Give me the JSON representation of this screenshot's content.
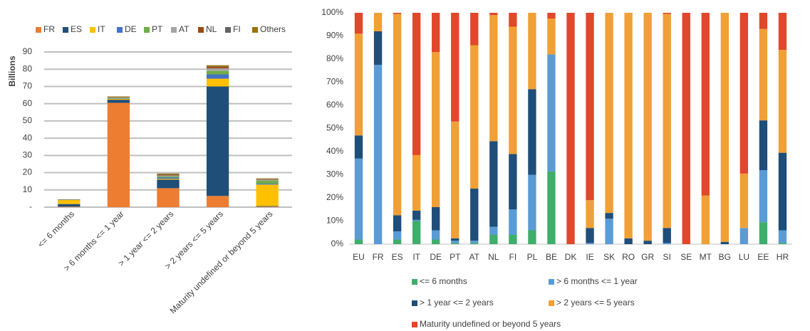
{
  "chart_data": [
    {
      "type": "bar",
      "stacked": true,
      "y_label": "Billions",
      "grid": true,
      "legend": "top",
      "categories": [
        "<= 6 months",
        "> 6 months <= 1 year",
        "> 1 year <= 2 years",
        "> 2 years <= 5 years",
        "Maturity undefined or beyond 5 years"
      ],
      "ylim": [
        0,
        90
      ],
      "yticks": [
        {
          "value": 0,
          "label": "-"
        },
        10,
        20,
        30,
        40,
        50,
        60,
        70,
        80,
        90
      ],
      "series": [
        {
          "name": "FR",
          "color": "#ed7d31",
          "values": [
            0.3,
            60.5,
            11,
            6.5,
            0.3
          ]
        },
        {
          "name": "ES",
          "color": "#1f4e79",
          "values": [
            1.5,
            1.8,
            5,
            63.5,
            0.3
          ]
        },
        {
          "name": "IT",
          "color": "#ffc000",
          "values": [
            2.3,
            0.5,
            0.5,
            4.5,
            12.5
          ]
        },
        {
          "name": "DE",
          "color": "#4472c4",
          "values": [
            0.2,
            0.3,
            0.8,
            2.5,
            0.5
          ]
        },
        {
          "name": "PT",
          "color": "#70ad47",
          "values": [
            0,
            0.3,
            0.6,
            2,
            1.8
          ]
        },
        {
          "name": "AT",
          "color": "#a5a5a5",
          "values": [
            0,
            0.2,
            0.4,
            1.5,
            0.5
          ]
        },
        {
          "name": "NL",
          "color": "#9e480e",
          "values": [
            0,
            0.2,
            0.4,
            0.8,
            0.3
          ]
        },
        {
          "name": "FI",
          "color": "#636363",
          "values": [
            0,
            0.1,
            0.3,
            0.3,
            0.2
          ]
        },
        {
          "name": "Others",
          "color": "#997300",
          "values": [
            0.2,
            0.3,
            0.5,
            0.7,
            0.3
          ]
        }
      ]
    },
    {
      "type": "bar",
      "stacked": true,
      "grid": false,
      "legend": "bottom",
      "categories": [
        "EU",
        "FR",
        "ES",
        "IT",
        "DE",
        "PT",
        "AT",
        "NL",
        "FI",
        "PL",
        "BE",
        "DK",
        "IE",
        "SK",
        "RO",
        "GR",
        "SI",
        "SE",
        "MT",
        "BG",
        "LU",
        "EE",
        "HR"
      ],
      "ylim": [
        0,
        100
      ],
      "yticks": [
        {
          "value": 0,
          "label": "0%"
        },
        {
          "value": 10,
          "label": "10%"
        },
        {
          "value": 20,
          "label": "20%"
        },
        {
          "value": 30,
          "label": "30%"
        },
        {
          "value": 40,
          "label": "40%"
        },
        {
          "value": 50,
          "label": "50%"
        },
        {
          "value": 60,
          "label": "60%"
        },
        {
          "value": 70,
          "label": "70%"
        },
        {
          "value": 80,
          "label": "80%"
        },
        {
          "value": 90,
          "label": "90%"
        },
        {
          "value": 100,
          "label": "100%"
        }
      ],
      "series": [
        {
          "name": "<= 6 months",
          "color": "#3fae6a",
          "values": [
            2,
            0,
            2,
            10,
            2,
            0.5,
            0.5,
            4,
            4,
            6,
            31.5,
            0,
            0,
            0,
            0,
            0,
            0,
            0,
            0,
            0,
            0,
            9.5,
            0.5
          ]
        },
        {
          "name": "> 6 months <= 1 year",
          "color": "#5b9bd5",
          "values": [
            35,
            77.5,
            3.5,
            0.5,
            4,
            1,
            1,
            3.5,
            11,
            24,
            50.5,
            0,
            0.5,
            11,
            0,
            0,
            0.5,
            0,
            0,
            0,
            7,
            22.5,
            5.5
          ]
        },
        {
          "name": "> 1 year <= 2 years",
          "color": "#1f4e79",
          "values": [
            10,
            14.5,
            7,
            4,
            10,
            1,
            22.5,
            37,
            24,
            37,
            0,
            0,
            6.5,
            2.5,
            2.5,
            1.5,
            6.5,
            0,
            0,
            1,
            0,
            21.5,
            33.5
          ]
        },
        {
          "name": "> 2 years <= 5 years",
          "color": "#f0a035",
          "values": [
            44,
            8,
            87,
            24,
            67,
            50.5,
            62,
            54.5,
            55,
            33,
            15.5,
            0,
            12,
            86.5,
            97.5,
            98.5,
            92.5,
            0,
            21,
            99,
            23.5,
            39.5,
            44.5
          ]
        },
        {
          "name": "Maturity undefined or beyond 5 years",
          "color": "#e1472b",
          "values": [
            9,
            0,
            0.5,
            61.5,
            17,
            47,
            14,
            1,
            6,
            0,
            2.5,
            100,
            81,
            0,
            0,
            0,
            0.5,
            100,
            79,
            0,
            69.5,
            7,
            16
          ]
        }
      ]
    }
  ]
}
